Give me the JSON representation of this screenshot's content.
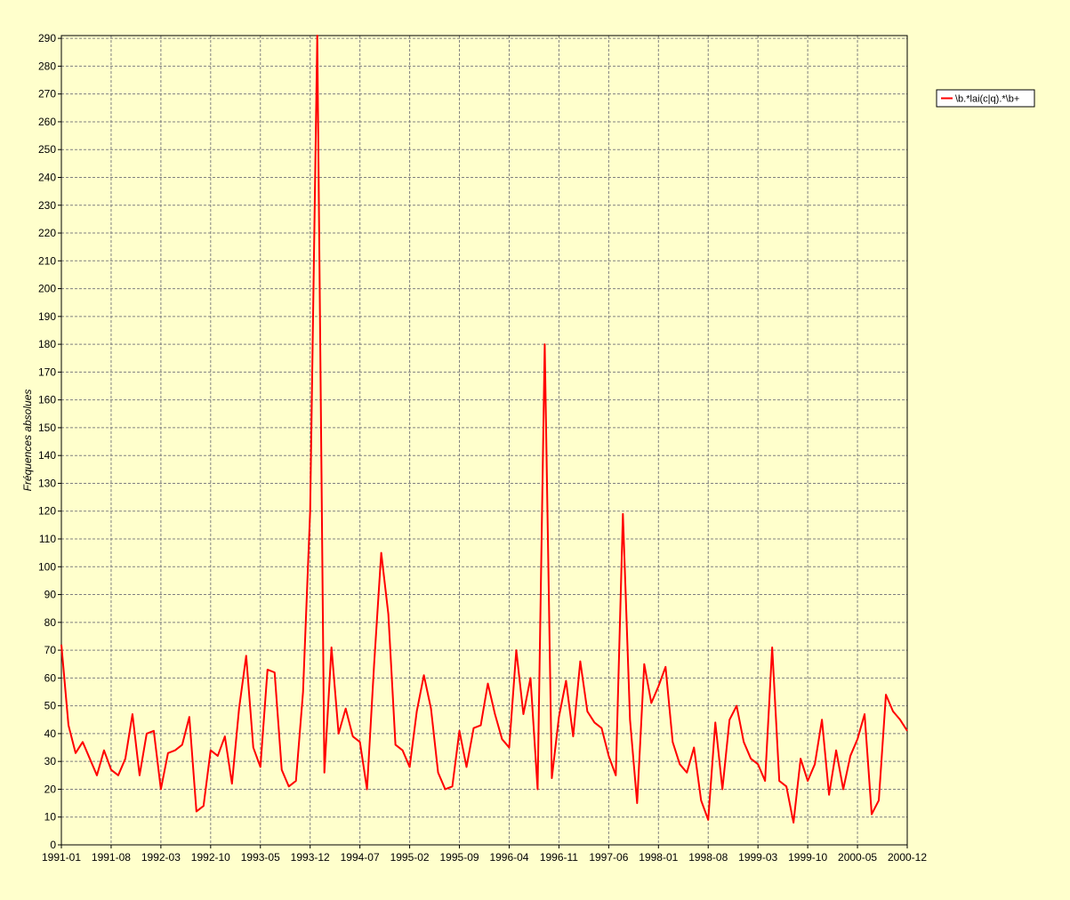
{
  "chart_data": {
    "type": "line",
    "ylabel": "Fréquences absolues",
    "xlabel": "",
    "ylim": [
      0,
      291
    ],
    "yticks": [
      0,
      10,
      20,
      30,
      40,
      50,
      60,
      70,
      80,
      90,
      100,
      110,
      120,
      130,
      140,
      150,
      160,
      170,
      180,
      190,
      200,
      210,
      220,
      230,
      240,
      250,
      260,
      270,
      280,
      290
    ],
    "xtick_labels": [
      "1991-01",
      "1991-08",
      "1992-03",
      "1992-10",
      "1993-05",
      "1993-12",
      "1994-07",
      "1995-02",
      "1995-09",
      "1996-04",
      "1996-11",
      "1997-06",
      "1998-01",
      "1998-08",
      "1999-03",
      "1999-10",
      "2000-05",
      "2000-12"
    ],
    "grid": true,
    "legend_position": "top-right",
    "colors": {
      "line": "#ff0000",
      "background": "#ffffcc",
      "grid": "#808080"
    },
    "series": [
      {
        "name": "\\b.*lai(c|q).*\\b+",
        "x": [
          "1991-01",
          "1991-02",
          "1991-03",
          "1991-04",
          "1991-05",
          "1991-06",
          "1991-07",
          "1991-08",
          "1991-09",
          "1991-10",
          "1991-11",
          "1991-12",
          "1992-01",
          "1992-02",
          "1992-03",
          "1992-04",
          "1992-05",
          "1992-06",
          "1992-07",
          "1992-08",
          "1992-09",
          "1992-10",
          "1992-11",
          "1992-12",
          "1993-01",
          "1993-02",
          "1993-03",
          "1993-04",
          "1993-05",
          "1993-06",
          "1993-07",
          "1993-08",
          "1993-09",
          "1993-10",
          "1993-11",
          "1993-12",
          "1994-01",
          "1994-02",
          "1994-03",
          "1994-04",
          "1994-05",
          "1994-06",
          "1994-07",
          "1994-08",
          "1994-09",
          "1994-10",
          "1994-11",
          "1994-12",
          "1995-01",
          "1995-02",
          "1995-03",
          "1995-04",
          "1995-05",
          "1995-06",
          "1995-07",
          "1995-08",
          "1995-09",
          "1995-10",
          "1995-11",
          "1995-12",
          "1996-01",
          "1996-02",
          "1996-03",
          "1996-04",
          "1996-05",
          "1996-06",
          "1996-07",
          "1996-08",
          "1996-09",
          "1996-10",
          "1996-11",
          "1996-12",
          "1997-01",
          "1997-02",
          "1997-03",
          "1997-04",
          "1997-05",
          "1997-06",
          "1997-07",
          "1997-08",
          "1997-09",
          "1997-10",
          "1997-11",
          "1997-12",
          "1998-01",
          "1998-02",
          "1998-03",
          "1998-04",
          "1998-05",
          "1998-06",
          "1998-07",
          "1998-08",
          "1998-09",
          "1998-10",
          "1998-11",
          "1998-12",
          "1999-01",
          "1999-02",
          "1999-03",
          "1999-04",
          "1999-05",
          "1999-06",
          "1999-07",
          "1999-08",
          "1999-09",
          "1999-10",
          "1999-11",
          "1999-12",
          "2000-01",
          "2000-02",
          "2000-03",
          "2000-04",
          "2000-05",
          "2000-06",
          "2000-07",
          "2000-08",
          "2000-09",
          "2000-10",
          "2000-11",
          "2000-12"
        ],
        "values": [
          72,
          43,
          33,
          37,
          31,
          25,
          34,
          27,
          25,
          31,
          47,
          25,
          40,
          41,
          20,
          33,
          34,
          36,
          46,
          12,
          14,
          34,
          32,
          39,
          22,
          49,
          68,
          35,
          28,
          63,
          62,
          27,
          21,
          23,
          55,
          120,
          291,
          26,
          71,
          40,
          49,
          39,
          37,
          20,
          65,
          105,
          83,
          36,
          34,
          28,
          48,
          61,
          49,
          26,
          20,
          21,
          41,
          28,
          42,
          43,
          58,
          47,
          38,
          35,
          70,
          47,
          60,
          20,
          180,
          24,
          46,
          59,
          39,
          66,
          48,
          44,
          42,
          32,
          25,
          119,
          45,
          15,
          65,
          51,
          57,
          64,
          37,
          29,
          26,
          35,
          16,
          9,
          44,
          20,
          45,
          50,
          37,
          31,
          29,
          23,
          71,
          23,
          21,
          8,
          31,
          23,
          29,
          45,
          18,
          34,
          20,
          32,
          38,
          47,
          11,
          16,
          54,
          48,
          45,
          41
        ]
      }
    ]
  }
}
